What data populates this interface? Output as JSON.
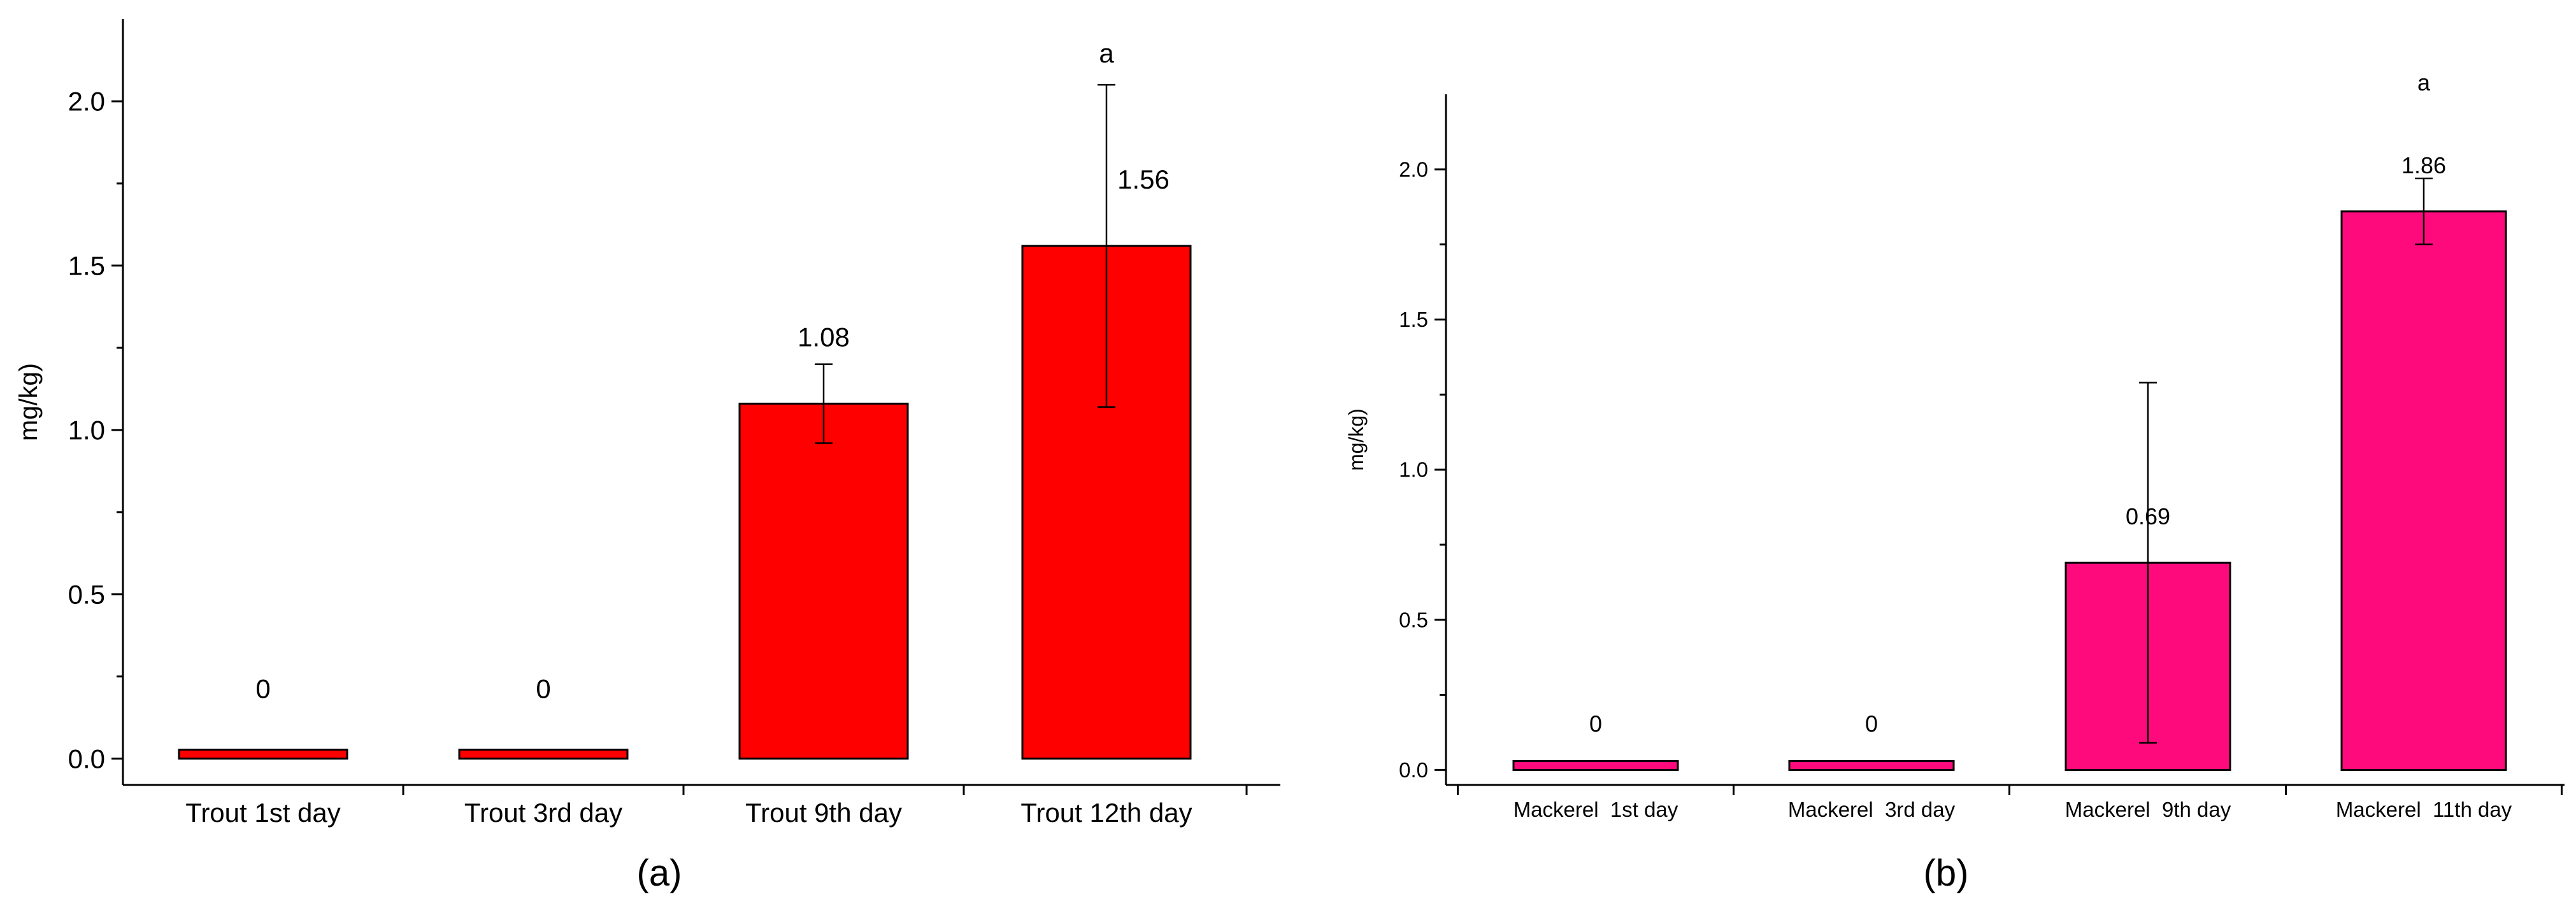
{
  "chart_data": [
    {
      "type": "bar",
      "panel_label": "(a)",
      "ylabel": "mg/kg)",
      "categories": [
        "Trout 1st day",
        "Trout 3rd day",
        "Trout 9th day",
        "Trout 12th day"
      ],
      "values": [
        0,
        0,
        1.08,
        1.56
      ],
      "value_labels": [
        "0",
        "0",
        "1.08",
        "1.56"
      ],
      "errors": [
        0,
        0,
        0.12,
        0.49
      ],
      "significance": [
        "",
        "",
        "",
        "a"
      ],
      "ylim": [
        -0.08,
        2.25
      ],
      "yticks": [
        0.0,
        0.5,
        1.0,
        1.5,
        2.0
      ],
      "ytick_labels": [
        "0.0",
        "0.5",
        "1.0",
        "1.5",
        "2.0"
      ],
      "bar_color": "#ff0000",
      "grid": false
    },
    {
      "type": "bar",
      "panel_label": "(b)",
      "ylabel": "mg/kg)",
      "categories": [
        "Mackerel  1st day",
        "Mackerel  3rd day",
        "Mackerel  9th day",
        "Mackerel  11th day"
      ],
      "values": [
        0,
        0,
        0.69,
        1.86
      ],
      "value_labels": [
        "0",
        "0",
        "0.69",
        "1.86"
      ],
      "errors": [
        0,
        0,
        0.6,
        0.11
      ],
      "significance": [
        "",
        "",
        "",
        "a"
      ],
      "ylim": [
        -0.05,
        2.25
      ],
      "yticks": [
        0.0,
        0.5,
        1.0,
        1.5,
        2.0
      ],
      "ytick_labels": [
        "0.0",
        "0.5",
        "1.0",
        "1.5",
        "2.0"
      ],
      "bar_color": "#ff0a7c",
      "grid": false
    }
  ]
}
